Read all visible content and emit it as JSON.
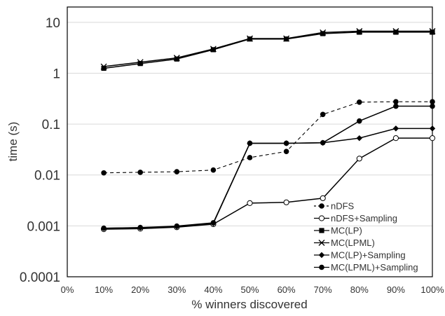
{
  "chart_data": {
    "type": "line",
    "title": "",
    "xlabel": "% winners discovered",
    "ylabel": "time (s)",
    "y_scale": "log",
    "ylim": [
      0.0001,
      20
    ],
    "x_ticks": [
      "0%",
      "10%",
      "20%",
      "30%",
      "40%",
      "50%",
      "60%",
      "70%",
      "80%",
      "90%",
      "100%"
    ],
    "y_ticks": [
      "0.0001",
      "0.001",
      "0.01",
      "0.1",
      "1",
      "10"
    ],
    "grid": true,
    "legend_position": "bottom-right",
    "x": [
      10,
      20,
      30,
      40,
      50,
      60,
      70,
      80,
      90,
      100
    ],
    "series": [
      {
        "name": "nDFS",
        "dash": "dashed",
        "marker": "filled-circle",
        "values": [
          0.011,
          0.0113,
          0.0116,
          0.0125,
          0.022,
          0.029,
          0.155,
          0.27,
          0.275,
          0.275
        ]
      },
      {
        "name": "nDFS+Sampling",
        "dash": "solid",
        "marker": "open-circle",
        "values": [
          0.00086,
          0.00088,
          0.00094,
          0.00108,
          0.0028,
          0.0029,
          0.0035,
          0.021,
          0.053,
          0.053
        ]
      },
      {
        "name": "MC(LP)",
        "dash": "solid",
        "marker": "square",
        "values": [
          1.25,
          1.55,
          1.9,
          2.9,
          4.7,
          4.7,
          6.0,
          6.4,
          6.4,
          6.4
        ]
      },
      {
        "name": "MC(LPML)",
        "dash": "solid",
        "marker": "x",
        "values": [
          1.35,
          1.65,
          2.0,
          3.0,
          4.8,
          4.8,
          6.3,
          6.7,
          6.7,
          6.7
        ]
      },
      {
        "name": "MC(LP)+Sampling",
        "dash": "solid",
        "marker": "diamond",
        "values": [
          0.0009,
          0.00092,
          0.00097,
          0.00112,
          0.042,
          0.042,
          0.043,
          0.053,
          0.082,
          0.082
        ]
      },
      {
        "name": "MC(LPML)+Sampling",
        "dash": "solid",
        "marker": "filled-circle",
        "values": [
          0.0009,
          0.00093,
          0.00099,
          0.00115,
          0.042,
          0.042,
          0.043,
          0.115,
          0.225,
          0.225
        ]
      }
    ]
  }
}
